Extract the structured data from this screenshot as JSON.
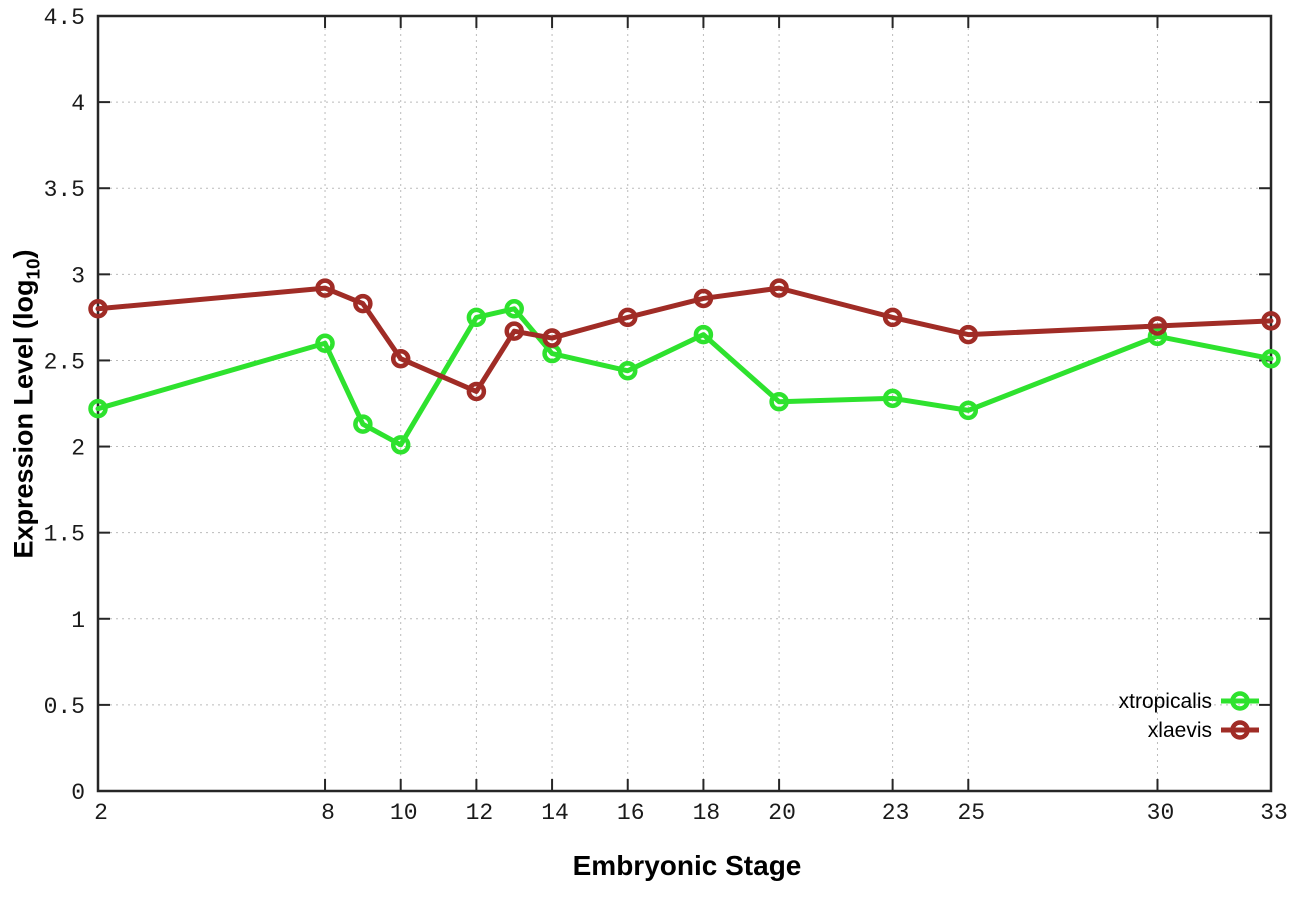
{
  "colors": {
    "background": "#ffffff",
    "axis": "#262626",
    "tick_text": "#1a1a1a",
    "grid": "#bbbbbb",
    "xtropicalis": "#2ee22e",
    "xlaevis": "#a02c26"
  },
  "axis_titles": {
    "x": "Embryonic Stage",
    "y_prefix": "Expression Level (log",
    "y_sub": "10",
    "y_suffix": ")"
  },
  "chart_data": {
    "type": "line",
    "title": "",
    "xlabel": "Embryonic Stage",
    "ylabel": "Expression Level (log10)",
    "xlim": [
      2,
      33
    ],
    "ylim": [
      0,
      4.5
    ],
    "grid": true,
    "legend_position": "bottom-right-inside",
    "x": [
      2,
      8,
      9,
      10,
      12,
      13,
      14,
      16,
      18,
      20,
      23,
      25,
      30,
      33
    ],
    "xticks": [
      2,
      8,
      10,
      12,
      14,
      16,
      18,
      20,
      23,
      25,
      30,
      33
    ],
    "yticks": [
      0,
      0.5,
      1,
      1.5,
      2,
      2.5,
      3,
      3.5,
      4,
      4.5
    ],
    "series": [
      {
        "name": "xtropicalis",
        "color": "#2ee22e",
        "marker": "open-circle",
        "values": [
          2.22,
          2.6,
          2.13,
          2.01,
          2.75,
          2.8,
          2.54,
          2.44,
          2.65,
          2.26,
          2.28,
          2.21,
          2.64,
          2.51
        ]
      },
      {
        "name": "xlaevis",
        "color": "#a02c26",
        "marker": "open-circle",
        "values": [
          2.8,
          2.92,
          2.83,
          2.51,
          2.32,
          2.67,
          2.63,
          2.75,
          2.86,
          2.92,
          2.75,
          2.65,
          2.7,
          2.73
        ]
      }
    ]
  }
}
